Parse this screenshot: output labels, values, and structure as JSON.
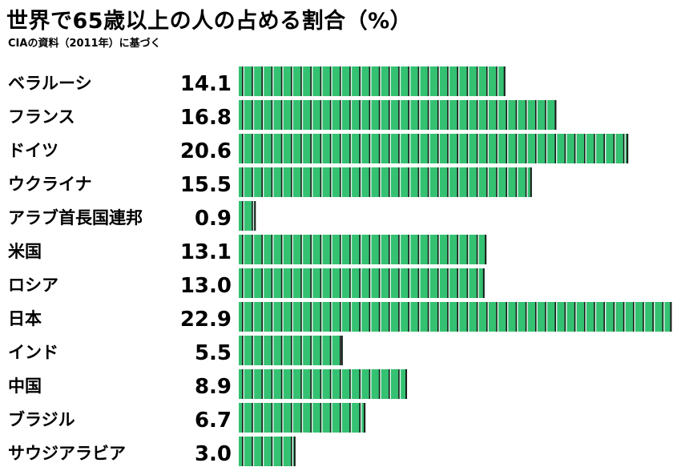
{
  "chart_data": {
    "type": "bar",
    "orientation": "horizontal",
    "title": "世界で65歳以上の人の占める割合（%）",
    "subtitle": "CIAの資料（2011年）に基づく",
    "categories": [
      "ベラルーシ",
      "フランス",
      "ドイツ",
      "ウクライナ",
      "アラブ首長国連邦",
      "米国",
      "ロシア",
      "日本",
      "インド",
      "中国",
      "ブラジル",
      "サウジアラビア"
    ],
    "values": [
      14.1,
      16.8,
      20.6,
      15.5,
      0.9,
      13.1,
      13.0,
      22.9,
      5.5,
      8.9,
      6.7,
      3.0
    ],
    "value_labels": [
      "14.1",
      "16.8",
      "20.6",
      "15.5",
      "0.9",
      "13.1",
      "13.0",
      "22.9",
      "5.5",
      "8.9",
      "6.7",
      "3.0"
    ],
    "xlim": [
      0,
      23
    ],
    "colors": {
      "bar": "#34c172",
      "divider": "#1a1a1a",
      "background": "#ffffff"
    }
  }
}
